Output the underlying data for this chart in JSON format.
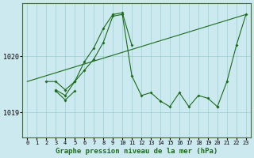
{
  "title": "Graphe pression niveau de la mer (hPa)",
  "background_color": "#cde9f0",
  "plot_bg_color": "#cde9f0",
  "grid_color": "#9ecfcf",
  "line_color": "#1a6b1a",
  "ylim": [
    1018.55,
    1020.95
  ],
  "xlim": [
    -0.5,
    23.5
  ],
  "yticks": [
    1019,
    1020
  ],
  "xticks": [
    0,
    1,
    2,
    3,
    4,
    5,
    6,
    7,
    8,
    9,
    10,
    11,
    12,
    13,
    14,
    15,
    16,
    17,
    18,
    19,
    20,
    21,
    22,
    23
  ],
  "series": [
    {
      "x": [
        0,
        23
      ],
      "y": [
        1019.55,
        1020.75
      ],
      "markers": false
    },
    {
      "x": [
        2,
        3,
        4,
        5,
        6,
        7,
        8,
        9,
        10,
        11,
        12,
        13,
        14,
        15,
        16,
        17,
        18,
        19,
        20,
        21,
        22,
        23
      ],
      "y": [
        1019.55,
        1019.55,
        1019.4,
        1019.55,
        1019.75,
        1019.95,
        1020.25,
        1020.72,
        1020.75,
        1019.65,
        1019.3,
        1019.35,
        1019.2,
        1019.1,
        1019.35,
        1019.1,
        1019.3,
        1019.25,
        1019.1,
        null,
        null,
        null
      ],
      "markers": true
    },
    {
      "x": [
        3,
        4,
        5,
        6,
        7,
        8,
        9,
        10,
        11
      ],
      "y": [
        1019.4,
        1019.3,
        1019.55,
        1019.9,
        1020.15,
        1020.5,
        1020.75,
        1020.78,
        1020.2
      ],
      "markers": true
    },
    {
      "x": [
        20,
        21,
        22,
        23
      ],
      "y": [
        1019.1,
        1019.55,
        1020.2,
        1020.75
      ],
      "markers": true
    },
    {
      "x": [
        3,
        4,
        5
      ],
      "y": [
        1019.38,
        1019.22,
        1019.38
      ],
      "markers": true
    }
  ]
}
